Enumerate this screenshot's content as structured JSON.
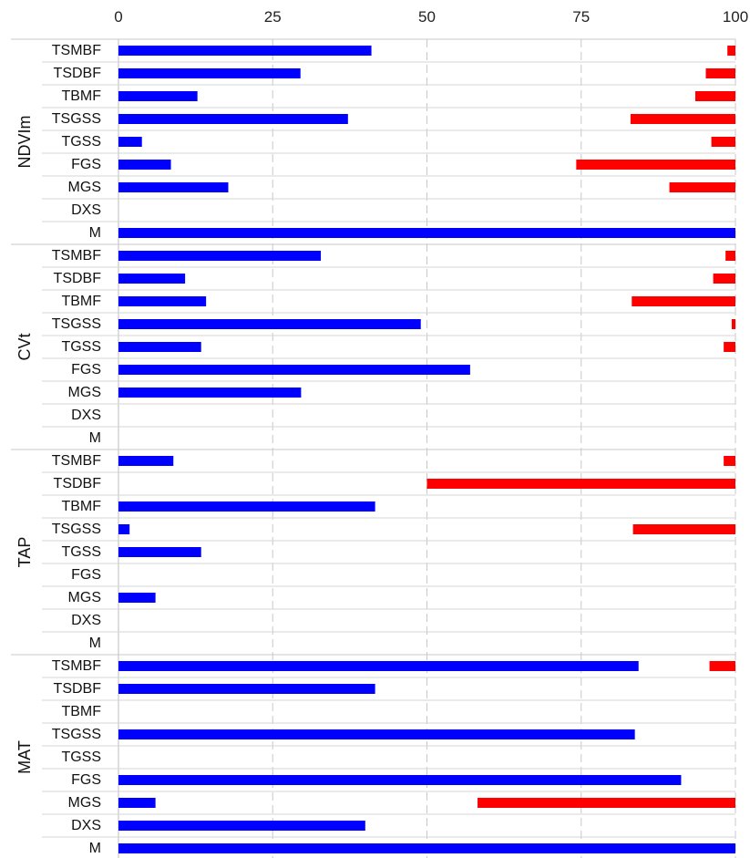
{
  "chart_data": {
    "type": "bar",
    "orientation": "horizontal",
    "xlim": [
      0,
      100
    ],
    "xticks": [
      "0",
      "25",
      "50",
      "75",
      "100"
    ],
    "legend": "none",
    "grid": "vertical dashed gridlines; horizontal row separators",
    "colors": {
      "left_bar": "#0000ff",
      "right_bar": "#ff0000"
    },
    "groups": [
      {
        "name": "NDVIm",
        "rows": [
          {
            "category": "TSMBF",
            "left": 41,
            "right": 1.3
          },
          {
            "category": "TSDBF",
            "left": 29.5,
            "right": 4.8
          },
          {
            "category": "TBMF",
            "left": 12.8,
            "right": 6.5
          },
          {
            "category": "TSGSS",
            "left": 37.2,
            "right": 17.0
          },
          {
            "category": "TGSS",
            "left": 3.8,
            "right": 3.9
          },
          {
            "category": "FGS",
            "left": 8.5,
            "right": 25.8
          },
          {
            "category": "MGS",
            "left": 17.8,
            "right": 10.7
          },
          {
            "category": "DXS",
            "left": 0,
            "right": 0
          },
          {
            "category": "M",
            "left": 100,
            "right": 0
          }
        ]
      },
      {
        "name": "CVt",
        "rows": [
          {
            "category": "TSMBF",
            "left": 32.8,
            "right": 1.6
          },
          {
            "category": "TSDBF",
            "left": 10.8,
            "right": 3.6
          },
          {
            "category": "TBMF",
            "left": 14.2,
            "right": 16.8
          },
          {
            "category": "TSGSS",
            "left": 49.0,
            "right": 0.6
          },
          {
            "category": "TGSS",
            "left": 13.4,
            "right": 1.9
          },
          {
            "category": "FGS",
            "left": 57.0,
            "right": 0
          },
          {
            "category": "MGS",
            "left": 29.6,
            "right": 0
          },
          {
            "category": "DXS",
            "left": 0,
            "right": 0
          },
          {
            "category": "M",
            "left": 0,
            "right": 0
          }
        ]
      },
      {
        "name": "TAP",
        "rows": [
          {
            "category": "TSMBF",
            "left": 8.9,
            "right": 1.9
          },
          {
            "category": "TSDBF",
            "left": 0,
            "right": 50.0
          },
          {
            "category": "TBMF",
            "left": 41.6,
            "right": 0
          },
          {
            "category": "TSGSS",
            "left": 1.8,
            "right": 16.6
          },
          {
            "category": "TGSS",
            "left": 13.4,
            "right": 0
          },
          {
            "category": "FGS",
            "left": 0,
            "right": 0
          },
          {
            "category": "MGS",
            "left": 6.0,
            "right": 0
          },
          {
            "category": "DXS",
            "left": 0,
            "right": 0
          },
          {
            "category": "M",
            "left": 0,
            "right": 0
          }
        ]
      },
      {
        "name": "MAT",
        "rows": [
          {
            "category": "TSMBF",
            "left": 84.3,
            "right": 4.2
          },
          {
            "category": "TSDBF",
            "left": 41.6,
            "right": 0
          },
          {
            "category": "TBMF",
            "left": 0,
            "right": 0
          },
          {
            "category": "TSGSS",
            "left": 83.7,
            "right": 0
          },
          {
            "category": "TGSS",
            "left": 0,
            "right": 0
          },
          {
            "category": "FGS",
            "left": 91.2,
            "right": 0
          },
          {
            "category": "MGS",
            "left": 6.0,
            "right": 41.8
          },
          {
            "category": "DXS",
            "left": 40.0,
            "right": 0
          },
          {
            "category": "M",
            "left": 100,
            "right": 0
          }
        ]
      }
    ]
  }
}
